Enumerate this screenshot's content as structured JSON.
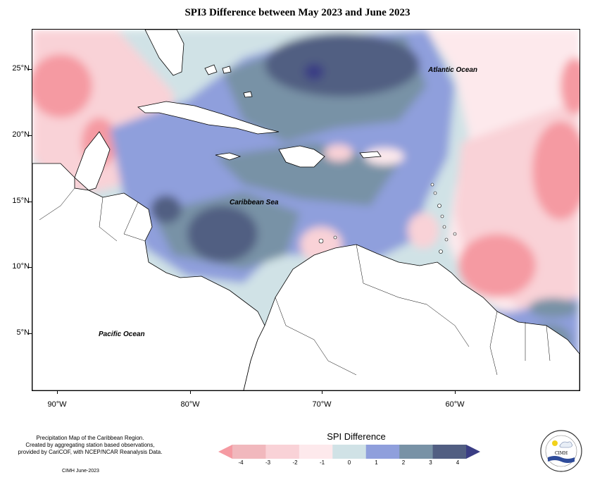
{
  "title": "SPI3 Difference between May 2023 and June 2023",
  "latitude_labels": [
    "25°N",
    "20°N",
    "15°N",
    "10°N",
    "5°N"
  ],
  "longitude_labels": [
    "90°W",
    "80°W",
    "70°W",
    "60°W"
  ],
  "map_labels": {
    "atlantic": "Atlantic Ocean",
    "caribbean": "Caribbean Sea",
    "pacific": "Pacific Ocean"
  },
  "credits": {
    "line1": "Precipitation Map of the Caribbean Region.",
    "line2": "Created by aggregating station based observations,",
    "line3": "provided by CariCOF, with NCEP/NCAR Reanalysis Data.",
    "date": "CIMH June-2023"
  },
  "legend": {
    "title": "SPI Difference",
    "ticks": [
      "-4",
      "-3",
      "-2",
      "-1",
      "0",
      "1",
      "2",
      "3",
      "4"
    ],
    "colors": [
      "#f59aa2",
      "#f1b8bd",
      "#f9d2d7",
      "#fde9ec",
      "#d0e2e6",
      "#8f9fdc",
      "#7892a6",
      "#515e82",
      "#3a3d84"
    ]
  },
  "logo": {
    "name": "CIMH"
  }
}
